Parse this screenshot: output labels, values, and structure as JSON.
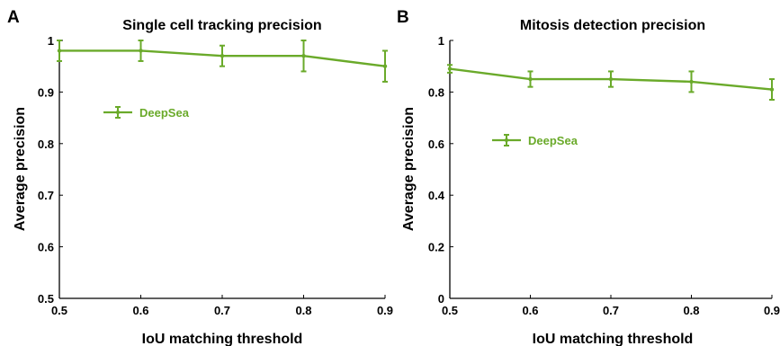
{
  "colors": {
    "series": "#6aaa2a",
    "axis": "#000000"
  },
  "chart_data": [
    {
      "panel_label": "A",
      "type": "line",
      "title": "Single cell tracking precision",
      "xlabel": "IoU matching threshold",
      "ylabel": "Average precision",
      "xlim": [
        0.5,
        0.9
      ],
      "ylim": [
        0.5,
        1.0
      ],
      "x_ticks": [
        "0.5",
        "0.6",
        "0.7",
        "0.8",
        "0.9"
      ],
      "y_ticks": [
        "0.5",
        "0.6",
        "0.7",
        "0.8",
        "0.9",
        "1"
      ],
      "grid": false,
      "legend_position": "upper-left",
      "series": [
        {
          "name": "DeepSea",
          "x": [
            0.5,
            0.6,
            0.7,
            0.8,
            0.9
          ],
          "y": [
            0.98,
            0.98,
            0.97,
            0.97,
            0.95
          ],
          "error": [
            0.02,
            0.02,
            0.02,
            0.03,
            0.03
          ]
        }
      ]
    },
    {
      "panel_label": "B",
      "type": "line",
      "title": "Mitosis detection precision",
      "xlabel": "IoU matching threshold",
      "ylabel": "Average precision",
      "xlim": [
        0.5,
        0.9
      ],
      "ylim": [
        0,
        1.0
      ],
      "x_ticks": [
        "0.5",
        "0.6",
        "0.7",
        "0.8",
        "0.9"
      ],
      "y_ticks": [
        "0",
        "0.2",
        "0.4",
        "0.6",
        "0.8",
        "1"
      ],
      "grid": false,
      "legend_position": "left-middle",
      "series": [
        {
          "name": "DeepSea",
          "x": [
            0.5,
            0.6,
            0.7,
            0.8,
            0.9
          ],
          "y": [
            0.89,
            0.85,
            0.85,
            0.84,
            0.81
          ],
          "error": [
            0.015,
            0.03,
            0.03,
            0.04,
            0.04
          ]
        }
      ]
    }
  ]
}
